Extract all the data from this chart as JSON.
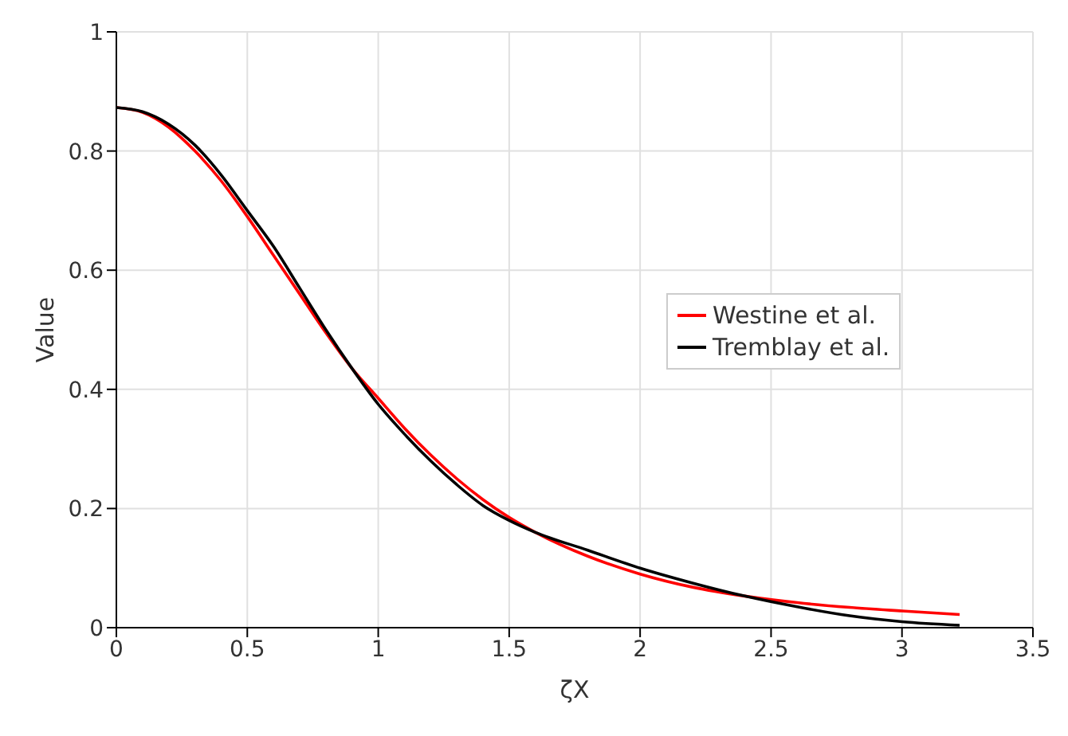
{
  "chart_data": {
    "type": "line",
    "xlabel": "ζX",
    "ylabel": "Value",
    "x": [
      0,
      0.1,
      0.2,
      0.3,
      0.4,
      0.5,
      0.6,
      0.7,
      0.8,
      0.9,
      1.0,
      1.1,
      1.2,
      1.3,
      1.4,
      1.5,
      1.6,
      1.8,
      2.0,
      2.2,
      2.4,
      2.6,
      2.8,
      3.0,
      3.22
    ],
    "series": [
      {
        "name": "Westine et al.",
        "color": "#ff0000",
        "values": [
          0.873,
          0.865,
          0.84,
          0.8,
          0.75,
          0.69,
          0.625,
          0.56,
          0.495,
          0.435,
          0.385,
          0.335,
          0.29,
          0.25,
          0.215,
          0.185,
          0.16,
          0.12,
          0.09,
          0.068,
          0.053,
          0.042,
          0.034,
          0.028,
          0.022
        ]
      },
      {
        "name": "Tremblay et al.",
        "color": "#000000",
        "values": [
          0.873,
          0.866,
          0.845,
          0.81,
          0.76,
          0.7,
          0.64,
          0.57,
          0.5,
          0.435,
          0.375,
          0.325,
          0.28,
          0.24,
          0.205,
          0.18,
          0.16,
          0.13,
          0.1,
          0.075,
          0.053,
          0.035,
          0.02,
          0.01,
          0.004
        ]
      }
    ],
    "xlim": [
      0,
      3.5
    ],
    "xticks": [
      0,
      0.5,
      1,
      1.5,
      2,
      2.5,
      3,
      3.5
    ],
    "ylim": [
      0,
      1
    ],
    "yticks": [
      0,
      0.2,
      0.4,
      0.6,
      0.8,
      1
    ],
    "grid": true,
    "legend": "right",
    "marker": "none",
    "line_style": "solid"
  }
}
